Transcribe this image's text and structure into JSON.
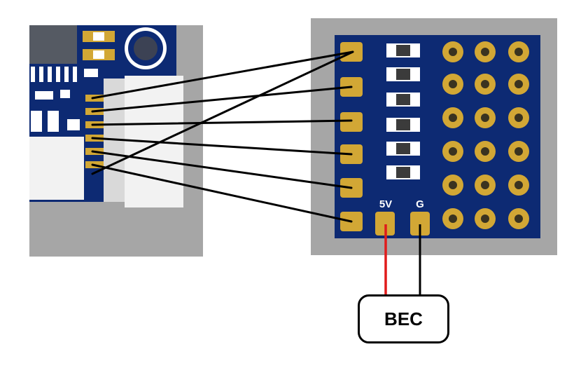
{
  "diagram": {
    "bec_label": "BEC",
    "pad_label_5v": "5V",
    "pad_label_gnd": "G",
    "wire_colors": {
      "signal": "#000000",
      "power_5v": "#e01b1b",
      "ground": "#000000"
    },
    "colors": {
      "pcb_blue": "#0d2a73",
      "pad_gold": "#d2a735",
      "enclosure_gray": "#a6a6a6",
      "connector_white": "#f2f2f2"
    }
  }
}
